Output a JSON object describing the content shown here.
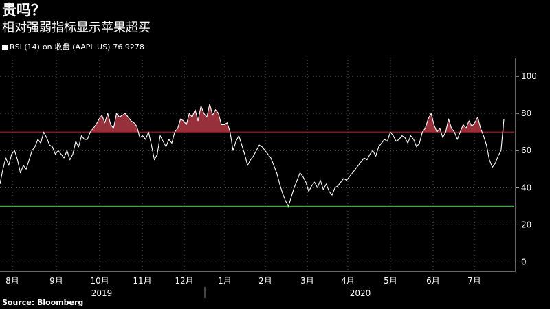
{
  "header": {
    "title": "贵吗？",
    "subtitle": "相对强弱指标显示苹果超买"
  },
  "legend": {
    "series_label": "RSI (14)",
    "on_label": "on",
    "field_label": "收盘 (AAPL US)",
    "last_value": "76.9278"
  },
  "footer": {
    "source": "Source: Bloomberg"
  },
  "colors": {
    "background": "#000000",
    "line": "#ffffff",
    "overbought_line": "#c8141e",
    "overbought_fill": "#b03a46",
    "oversold_line": "#2db32d",
    "grid": "#555555"
  },
  "chart_data": {
    "type": "line",
    "title": "",
    "xlabel": "",
    "ylabel": "",
    "ylim": [
      -5,
      110
    ],
    "yticks": [
      0,
      20,
      40,
      60,
      80,
      100
    ],
    "y_axis_side": "right",
    "grid": true,
    "grid_style": "dotted",
    "reference_lines": [
      {
        "value": 70,
        "label": "overbought"
      },
      {
        "value": 30,
        "label": "oversold"
      }
    ],
    "x_month_ticks": [
      "8月",
      "9月",
      "10月",
      "11月",
      "12月",
      "1月",
      "2月",
      "3月",
      "4月",
      "5月",
      "6月",
      "7月"
    ],
    "x_year_labels": [
      "2019",
      "2020"
    ],
    "series": [
      {
        "values": [
          42,
          50,
          56,
          52,
          58,
          60,
          55,
          48,
          52,
          50,
          55,
          60,
          62,
          66,
          64,
          70,
          67,
          63,
          62,
          58,
          60,
          58,
          56,
          60,
          55,
          58,
          65,
          62,
          68,
          66,
          66,
          70,
          72,
          74,
          77,
          79,
          75,
          80,
          74,
          72,
          80,
          78,
          79,
          80,
          78,
          76,
          75,
          73,
          67,
          68,
          66,
          70,
          63,
          55,
          58,
          68,
          65,
          62,
          66,
          64,
          70,
          72,
          77,
          76,
          74,
          80,
          78,
          82,
          76,
          84,
          80,
          78,
          85,
          79,
          82,
          80,
          74,
          74,
          75,
          70,
          60,
          65,
          68,
          63,
          58,
          52,
          55,
          57,
          60,
          63,
          62,
          60,
          58,
          56,
          52,
          48,
          42,
          37,
          33,
          30,
          35,
          40,
          44,
          48,
          46,
          43,
          38,
          41,
          43,
          40,
          44,
          39,
          42,
          38,
          36,
          40,
          41,
          43,
          45,
          44,
          46,
          48,
          50,
          52,
          54,
          56,
          55,
          58,
          60,
          57,
          62,
          64,
          66,
          65,
          70,
          68,
          65,
          66,
          68,
          67,
          64,
          68,
          66,
          62,
          64,
          70,
          72,
          77,
          80,
          74,
          70,
          72,
          67,
          70,
          77,
          72,
          70,
          66,
          70,
          74,
          72,
          76,
          73,
          75,
          78,
          72,
          68,
          63,
          55,
          51,
          53,
          57,
          60,
          76.9278
        ]
      }
    ]
  }
}
